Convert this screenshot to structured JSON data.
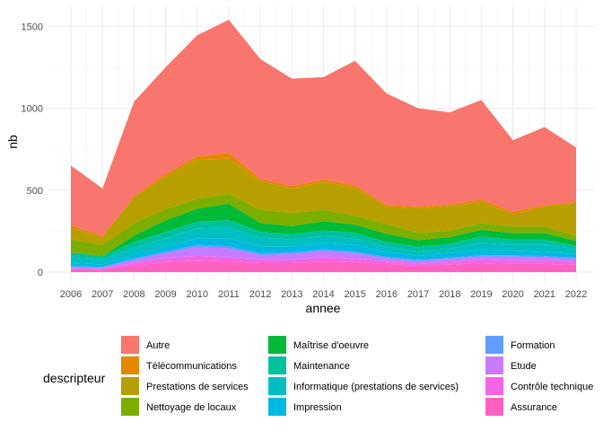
{
  "chart_data": {
    "type": "area",
    "stacked": true,
    "xlabel": "annee",
    "ylabel": "nb",
    "xlim": [
      2006,
      2022
    ],
    "ylim": [
      0,
      1600
    ],
    "yticks": [
      0,
      500,
      1000,
      1500
    ],
    "grid": true,
    "legend_position": "bottom",
    "legend_title": "descripteur",
    "x": [
      2006,
      2007,
      2008,
      2009,
      2010,
      2011,
      2012,
      2013,
      2014,
      2015,
      2016,
      2017,
      2018,
      2019,
      2020,
      2021,
      2022
    ],
    "series": [
      {
        "name": "Assurance",
        "color": "#FF61C3",
        "values": [
          18,
          15,
          40,
          60,
          70,
          65,
          55,
          55,
          65,
          60,
          50,
          40,
          45,
          55,
          50,
          50,
          45
        ]
      },
      {
        "name": "Contrôle technique",
        "color": "#F564E3",
        "values": [
          5,
          5,
          15,
          25,
          30,
          25,
          20,
          20,
          25,
          20,
          15,
          12,
          15,
          20,
          20,
          20,
          18
        ]
      },
      {
        "name": "Etude",
        "color": "#C77CFF",
        "values": [
          8,
          8,
          20,
          30,
          55,
          55,
          30,
          35,
          40,
          35,
          20,
          15,
          20,
          20,
          25,
          20,
          17
        ]
      },
      {
        "name": "Formation",
        "color": "#619CFF",
        "values": [
          4,
          4,
          8,
          10,
          12,
          12,
          10,
          10,
          10,
          10,
          8,
          8,
          8,
          8,
          8,
          8,
          8
        ]
      },
      {
        "name": "Impression",
        "color": "#00B9E3",
        "values": [
          20,
          15,
          25,
          30,
          40,
          50,
          40,
          35,
          35,
          40,
          30,
          25,
          30,
          30,
          25,
          25,
          22
        ]
      },
      {
        "name": "Informatique (prestations de services)",
        "color": "#00BFC4",
        "values": [
          35,
          30,
          40,
          50,
          60,
          65,
          55,
          45,
          45,
          40,
          30,
          25,
          25,
          45,
          40,
          45,
          30
        ]
      },
      {
        "name": "Maintenance",
        "color": "#00C19F",
        "values": [
          30,
          20,
          35,
          40,
          40,
          45,
          35,
          30,
          35,
          35,
          30,
          30,
          30,
          40,
          30,
          30,
          20
        ]
      },
      {
        "name": "Maîtrise d'oeuvre",
        "color": "#00BA38",
        "values": [
          0,
          0,
          40,
          70,
          80,
          100,
          55,
          50,
          55,
          50,
          50,
          40,
          40,
          40,
          40,
          40,
          30
        ]
      },
      {
        "name": "Nettoyage de locaux",
        "color": "#7CAE00",
        "values": [
          80,
          70,
          75,
          70,
          60,
          60,
          80,
          80,
          70,
          55,
          60,
          45,
          40,
          40,
          40,
          40,
          30
        ]
      },
      {
        "name": "Prestations de services",
        "color": "#B79F00",
        "values": [
          70,
          45,
          155,
          200,
          240,
          215,
          175,
          150,
          170,
          170,
          105,
          150,
          150,
          130,
          75,
          120,
          200
        ]
      },
      {
        "name": "Télécommunications",
        "color": "#E58700",
        "values": [
          15,
          10,
          10,
          15,
          20,
          35,
          15,
          15,
          15,
          15,
          10,
          10,
          10,
          15,
          15,
          10,
          10
        ]
      },
      {
        "name": "Autre",
        "color": "#F8766D",
        "values": [
          365,
          288,
          577,
          650,
          738,
          813,
          730,
          655,
          625,
          760,
          682,
          600,
          562,
          607,
          437,
          477,
          330
        ]
      }
    ],
    "legend_entries": [
      {
        "name": "Autre",
        "color": "#F8766D"
      },
      {
        "name": "Télécommunications",
        "color": "#E58700"
      },
      {
        "name": "Prestations de services",
        "color": "#B79F00"
      },
      {
        "name": "Nettoyage de locaux",
        "color": "#7CAE00"
      },
      {
        "name": "Maîtrise d'oeuvre",
        "color": "#00BA38"
      },
      {
        "name": "Maintenance",
        "color": "#00C19F"
      },
      {
        "name": "Informatique (prestations de services)",
        "color": "#00BFC4"
      },
      {
        "name": "Impression",
        "color": "#00B9E3"
      },
      {
        "name": "Formation",
        "color": "#619CFF"
      },
      {
        "name": "Etude",
        "color": "#C77CFF"
      },
      {
        "name": "Contrôle technique",
        "color": "#F564E3"
      },
      {
        "name": "Assurance",
        "color": "#FF61C3"
      }
    ]
  }
}
